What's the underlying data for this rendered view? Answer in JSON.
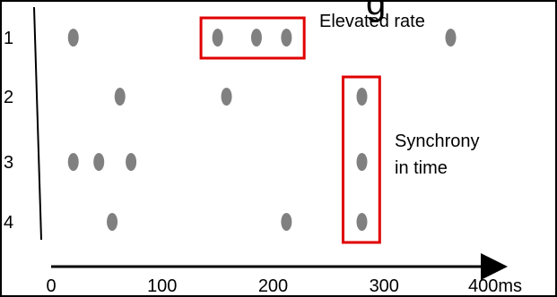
{
  "chart_data": {
    "type": "scatter",
    "title": "",
    "xlabel": "",
    "ylabel": "",
    "x_unit": "ms",
    "xlim": [
      0,
      400
    ],
    "x_ticks": [
      "0",
      "100",
      "200",
      "300",
      "400"
    ],
    "series": [
      {
        "row": "1",
        "x": [
          20,
          150,
          185,
          212,
          360
        ]
      },
      {
        "row": "2",
        "x": [
          62,
          158,
          280
        ]
      },
      {
        "row": "3",
        "x": [
          20,
          43,
          72,
          280
        ]
      },
      {
        "row": "4",
        "x": [
          55,
          212,
          280
        ]
      }
    ],
    "annotations": [
      {
        "label": "Elevated rate",
        "color": "#e00000"
      },
      {
        "label": "Synchrony",
        "label_line2": "in time",
        "color": "#e00000"
      }
    ],
    "marker_color": "#808080",
    "title_fragment": "g"
  }
}
